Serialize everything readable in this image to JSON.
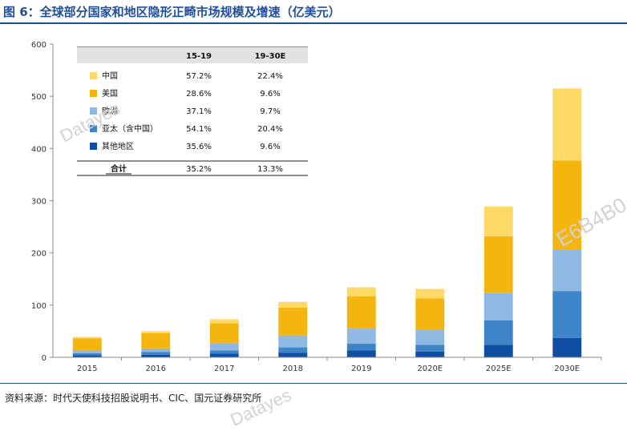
{
  "title": "图 6：全球部分国家和地区隐形正畸市场规模及增速（亿美元）",
  "source": "资料来源：时代天使科技招股说明书、CIC、国元证券研究所",
  "watermarks": [
    "Datayes",
    "E6B4B0",
    "Datayes"
  ],
  "colors": {
    "title": "#1f4f9c",
    "china": "#ffd966",
    "usa": "#f5b50f",
    "europe": "#8fb9e3",
    "apac_ex_china": "#3d85c8",
    "others": "#0f4ea0"
  },
  "growth_table": {
    "headers": [
      "",
      "15-19",
      "19-30E"
    ],
    "rows": [
      {
        "label": "中国",
        "swatch": "china",
        "v1": "57.2%",
        "v2": "22.4%"
      },
      {
        "label": "美国",
        "swatch": "usa",
        "v1": "28.6%",
        "v2": "9.6%"
      },
      {
        "label": "欧洲",
        "swatch": "europe",
        "v1": "37.1%",
        "v2": "9.7%"
      },
      {
        "label": "亚太（含中国）",
        "swatch": "apac_ex_china",
        "v1": "54.1%",
        "v2": "20.4%"
      },
      {
        "label": "其他地区",
        "swatch": "others",
        "v1": "35.6%",
        "v2": "9.6%"
      }
    ],
    "total": {
      "label": "合计",
      "v1": "35.2%",
      "v2": "13.3%"
    }
  },
  "chart_data": {
    "type": "bar",
    "stacked": true,
    "categories": [
      "2015",
      "2016",
      "2017",
      "2018",
      "2019",
      "2020E",
      "2025E",
      "2030E"
    ],
    "ylim": [
      0,
      600
    ],
    "yticks": [
      0,
      100,
      200,
      300,
      400,
      500,
      600
    ],
    "grid": false,
    "series": [
      {
        "name": "其他地区",
        "color_key": "others",
        "values": [
          4,
          5,
          7,
          9,
          13,
          11,
          24,
          37
        ]
      },
      {
        "name": "亚太（含中国）",
        "color_key": "apac_ex_china",
        "values": [
          4,
          5,
          6,
          10,
          13,
          13,
          47,
          90
        ]
      },
      {
        "name": "欧洲",
        "color_key": "europe",
        "values": [
          5,
          7,
          14,
          23,
          29,
          29,
          52,
          80
        ]
      },
      {
        "name": "美国",
        "color_key": "usa",
        "values": [
          23,
          29,
          38,
          53,
          62,
          60,
          109,
          170
        ]
      },
      {
        "name": "中国",
        "color_key": "china",
        "values": [
          3,
          4,
          8,
          11,
          17,
          18,
          57,
          138
        ]
      }
    ]
  }
}
